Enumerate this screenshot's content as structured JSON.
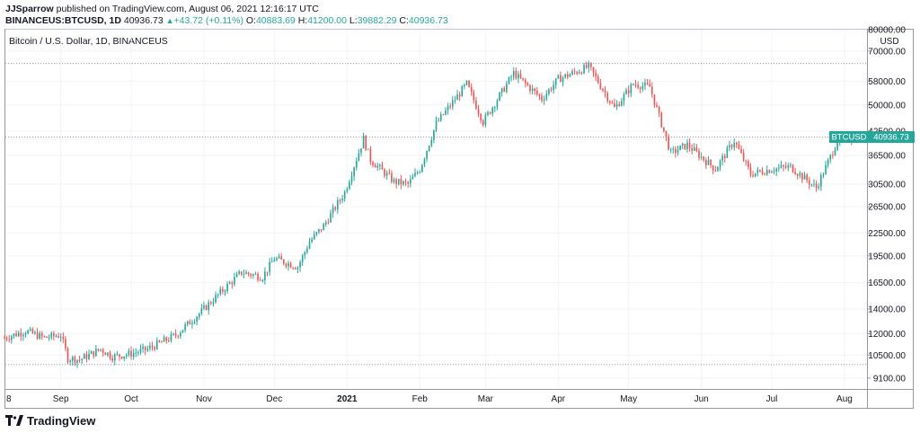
{
  "header": {
    "author": "JJSparrow",
    "published_text": "published on TradingView.com, August 06, 2021 12:16:17 UTC",
    "symbol": "BINANCEUS:BTCUSD, 1D",
    "last_price": "40936.73",
    "change": "+43.72 (+0.11%)",
    "open_label": "O:",
    "open": "40883.69",
    "high_label": "H:",
    "high": "41200.00",
    "low_label": "L:",
    "low": "39882.29",
    "close_label": "C:",
    "close": "40936.73"
  },
  "pane": {
    "title": "Bitcoin / U.S. Dollar, 1D, BINANCEUS",
    "currency": "USD",
    "price_tag_symbol": "BTCUSD",
    "price_tag_value": "40936.73"
  },
  "footer": {
    "logo_text": "TradingView"
  },
  "colors": {
    "up": "#26a69a",
    "down": "#ef5350",
    "grid": "#f0f3fa",
    "axis_text": "#131722"
  },
  "chart_data": {
    "type": "candlestick",
    "title": "Bitcoin / U.S. Dollar, 1D, BINANCEUS",
    "y_scale": "log",
    "ylim": [
      8500,
      80000
    ],
    "y_ticks": [
      9100,
      10500,
      12000,
      14000,
      16500,
      19500,
      22500,
      26500,
      30500,
      36500,
      42500,
      50000,
      58000,
      70000,
      80000
    ],
    "y_tick_labels": [
      "9100.00",
      "10500.00",
      "12000.00",
      "14000.00",
      "16500.00",
      "19500.00",
      "22500.00",
      "26500.00",
      "30500.00",
      "36500.00",
      "42500.00",
      "50000.00",
      "58000.00",
      "70000.00",
      "80000.00"
    ],
    "x_tick_labels": [
      "8",
      "Sep",
      "Oct",
      "Nov",
      "Dec",
      "2021",
      "Feb",
      "Mar",
      "Apr",
      "May",
      "Jun",
      "Jul",
      "Aug"
    ],
    "x_tick_dates": [
      "2020-08-08",
      "2020-09-01",
      "2020-10-01",
      "2020-11-01",
      "2020-12-01",
      "2021-01-01",
      "2021-02-01",
      "2021-03-01",
      "2021-04-01",
      "2021-05-01",
      "2021-06-01",
      "2021-07-01",
      "2021-08-01"
    ],
    "x_range": [
      "2020-08-08",
      "2021-08-06"
    ],
    "last_close": 40936.73,
    "dotted_levels": [
      64800,
      40936.73,
      9900
    ],
    "close_anchors": [
      [
        "2020-08-08",
        11700
      ],
      [
        "2020-08-17",
        12200
      ],
      [
        "2020-08-25",
        11700
      ],
      [
        "2020-09-01",
        11900
      ],
      [
        "2020-09-04",
        10300
      ],
      [
        "2020-09-09",
        10200
      ],
      [
        "2020-09-18",
        10900
      ],
      [
        "2020-09-23",
        10400
      ],
      [
        "2020-10-01",
        10600
      ],
      [
        "2020-10-08",
        10900
      ],
      [
        "2020-10-20",
        11900
      ],
      [
        "2020-10-31",
        13800
      ],
      [
        "2020-11-07",
        15300
      ],
      [
        "2020-11-17",
        17600
      ],
      [
        "2020-11-26",
        17100
      ],
      [
        "2020-12-01",
        19200
      ],
      [
        "2020-12-11",
        18200
      ],
      [
        "2020-12-16",
        21300
      ],
      [
        "2020-12-22",
        23500
      ],
      [
        "2020-12-31",
        29000
      ],
      [
        "2021-01-08",
        40500
      ],
      [
        "2021-01-11",
        35500
      ],
      [
        "2021-01-21",
        31000
      ],
      [
        "2021-01-27",
        30500
      ],
      [
        "2021-02-01",
        33500
      ],
      [
        "2021-02-08",
        44500
      ],
      [
        "2021-02-21",
        57000
      ],
      [
        "2021-02-28",
        45000
      ],
      [
        "2021-03-13",
        61000
      ],
      [
        "2021-03-25",
        52000
      ],
      [
        "2021-04-01",
        58800
      ],
      [
        "2021-04-14",
        63500
      ],
      [
        "2021-04-25",
        49000
      ],
      [
        "2021-05-03",
        57000
      ],
      [
        "2021-05-10",
        56000
      ],
      [
        "2021-05-19",
        37000
      ],
      [
        "2021-05-26",
        39000
      ],
      [
        "2021-06-07",
        33500
      ],
      [
        "2021-06-15",
        40000
      ],
      [
        "2021-06-22",
        32500
      ],
      [
        "2021-07-01",
        33500
      ],
      [
        "2021-07-09",
        34000
      ],
      [
        "2021-07-20",
        29800
      ],
      [
        "2021-07-25",
        35000
      ],
      [
        "2021-07-29",
        40000
      ],
      [
        "2021-08-06",
        40936.73
      ]
    ]
  }
}
